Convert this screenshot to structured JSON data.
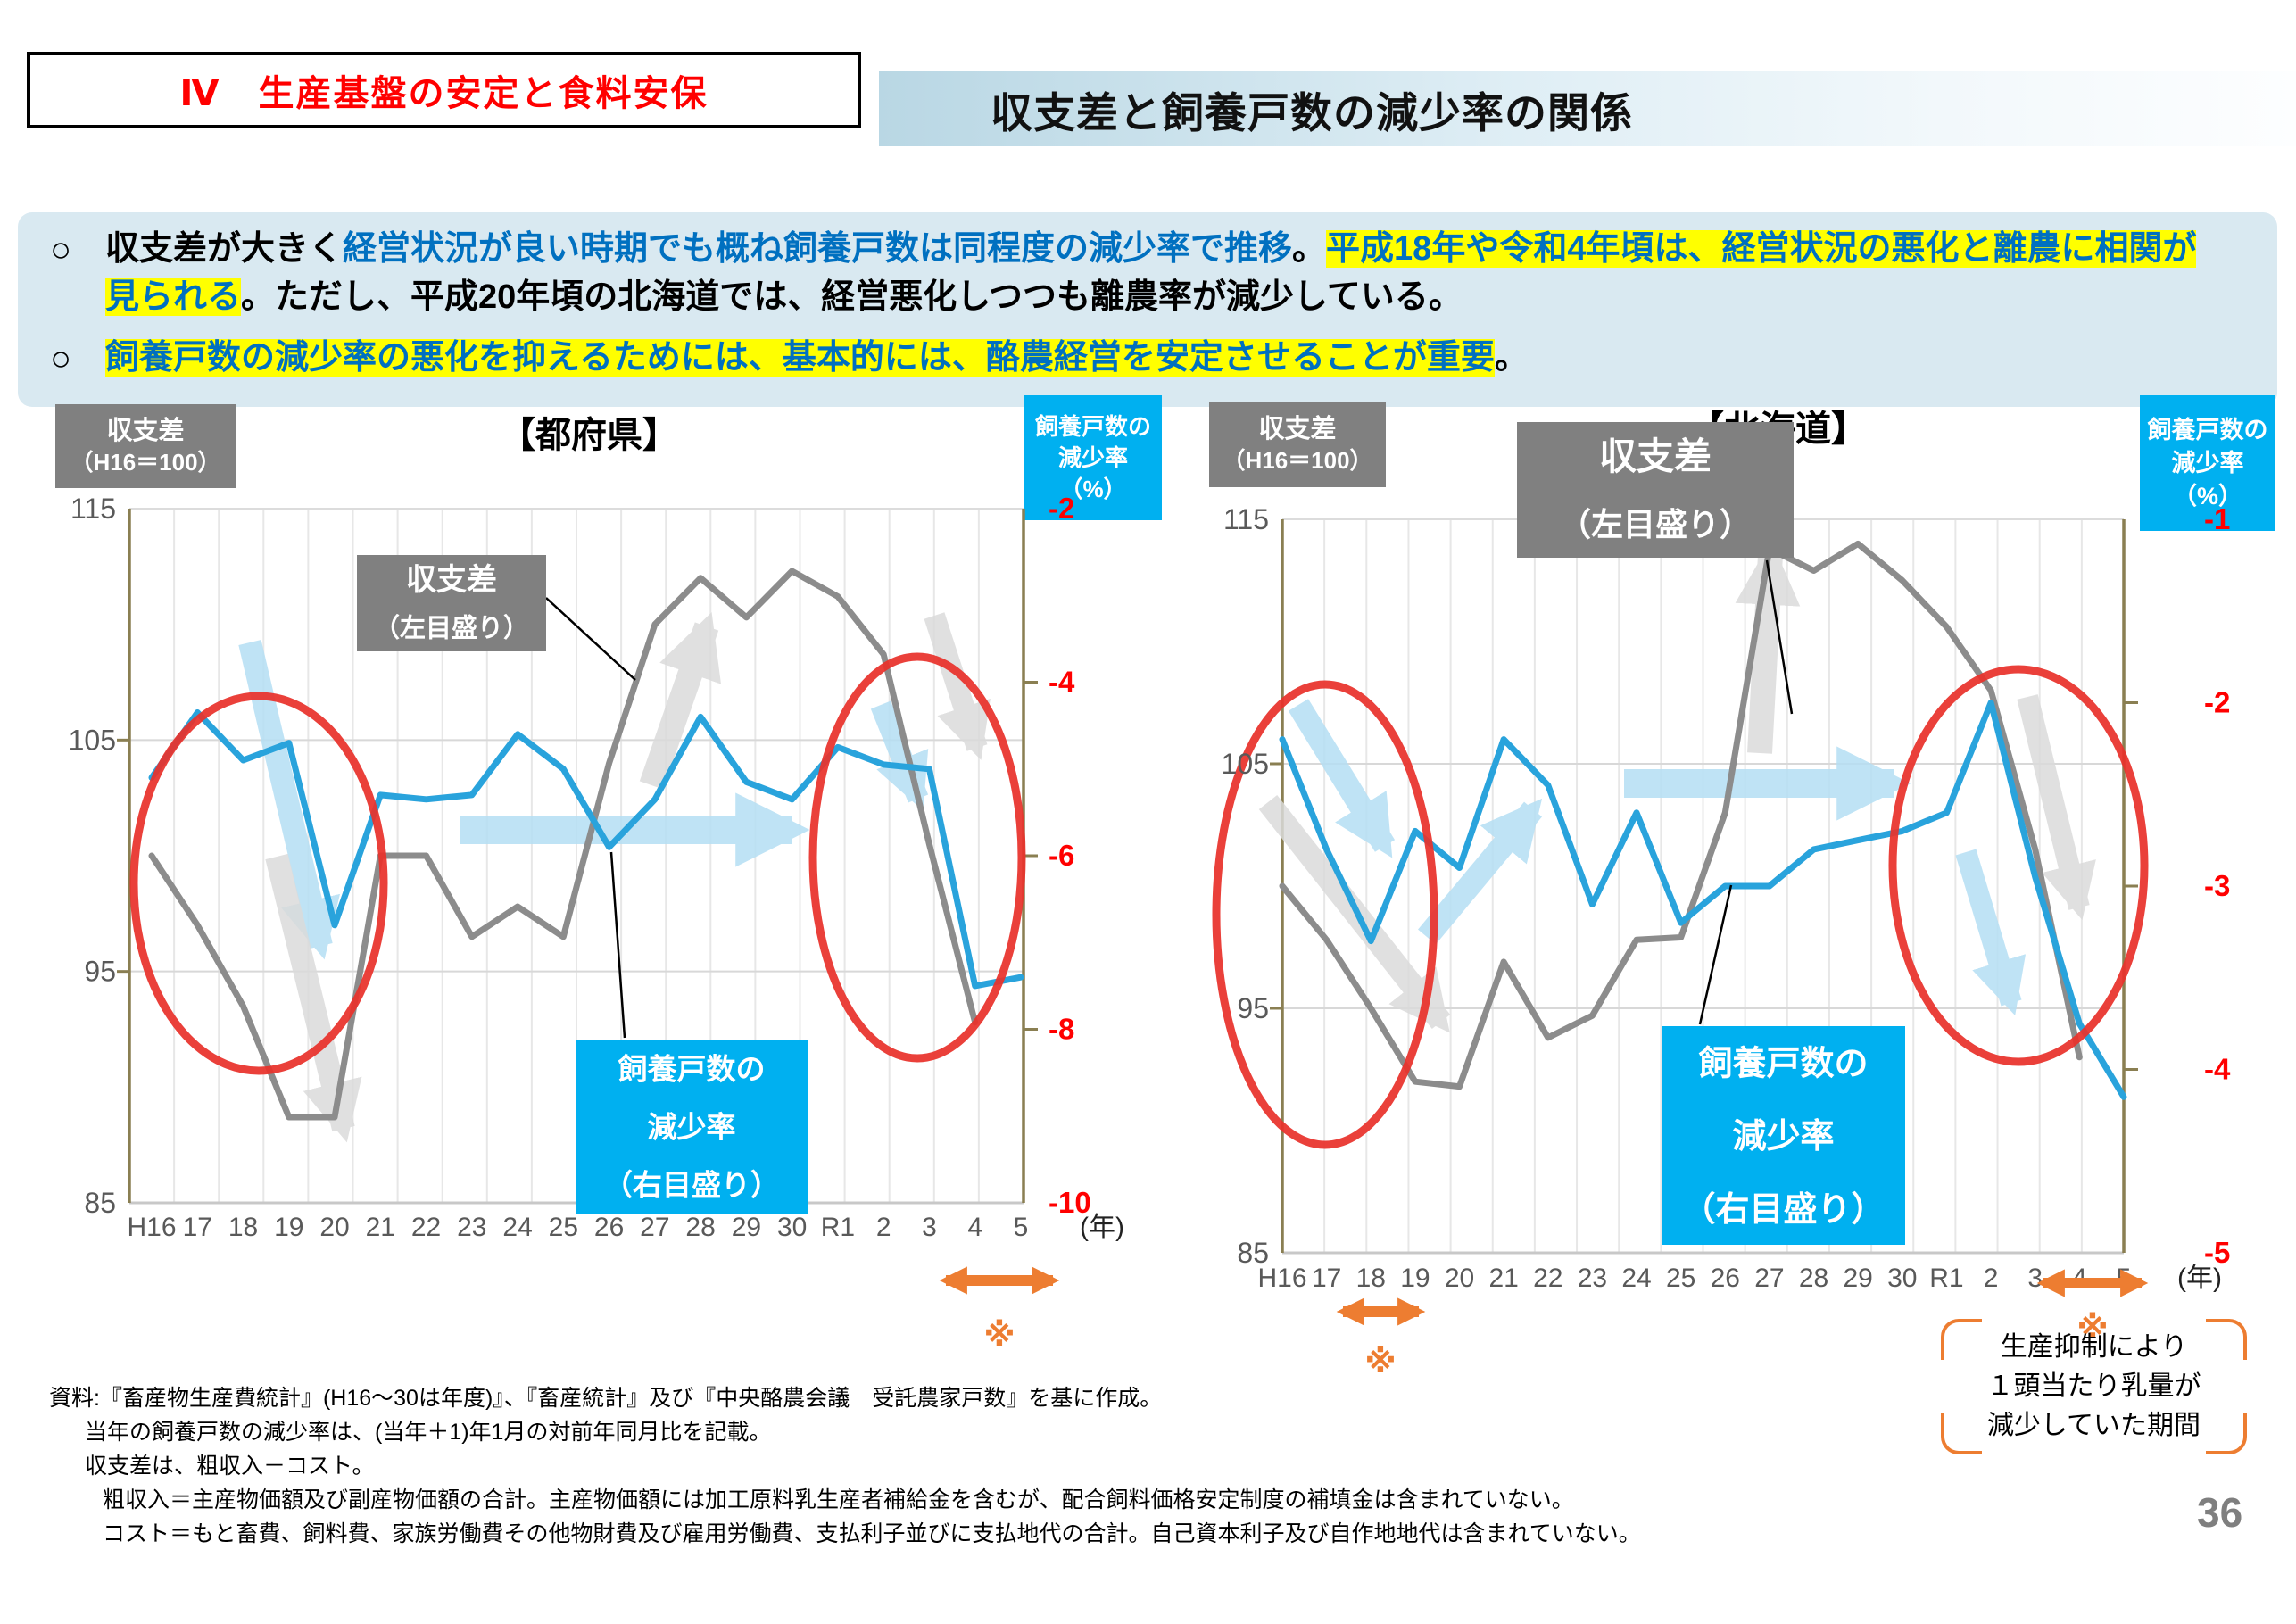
{
  "header": {
    "section_tag": "Ⅳ　生産基盤の安定と食料安保",
    "title": "収支差と飼養戸数の減少率の関係"
  },
  "lead": {
    "bullets": [
      {
        "marker": "○",
        "segments": [
          {
            "text": "収支差が大きく",
            "style": "plain"
          },
          {
            "text": "経営状況が良い時期でも概ね飼養戸数は同程度の減少率で推移",
            "style": "blue"
          },
          {
            "text": "。",
            "style": "plain"
          },
          {
            "text": "平成18年や令和4年頃は、経営状況の悪化と離農に相関が見られる",
            "style": "blue-highlight"
          },
          {
            "text": "。ただし、平成20年頃の北海道では、経営悪化しつつも離農率が減少している。",
            "style": "plain"
          }
        ]
      },
      {
        "marker": "○",
        "segments": [
          {
            "text": "飼養戸数の減少率の悪化を抑えるためには、基本的には、酪農経営を安定させることが重要",
            "style": "blue-highlight"
          },
          {
            "text": "。",
            "style": "plain"
          }
        ]
      }
    ]
  },
  "colors": {
    "emphasis_blue": "#0070C0",
    "highlight_yellow": "#FFFF00",
    "series_gray": "#8C8C8C",
    "series_blue": "#29A3DC",
    "light_blue_arrow": "#B5DFF4",
    "light_gray_arrow": "#DBDBDB",
    "annotation_red": "#E8312B",
    "accent_orange": "#ED7D31",
    "axis_red": "#FF0000",
    "axis_gray": "#595959",
    "box_gray": "#808080",
    "box_blue": "#00B0F0",
    "axis_olive": "#8A7F52",
    "lead_bg": "#D9E9F1"
  },
  "chart_data": [
    {
      "type": "line",
      "panel_title": "【都府県】",
      "left_axis_box": [
        "収支差",
        "（H16＝100）"
      ],
      "right_axis_box": [
        "飼養戸数の",
        "減少率",
        "（%）"
      ],
      "left_ticks": [
        115,
        105,
        95,
        85
      ],
      "right_ticks": [
        -2,
        -4,
        -6,
        -8,
        -10
      ],
      "left_range": [
        85,
        115
      ],
      "right_range": [
        -10,
        -2
      ],
      "x_labels": [
        "H16",
        "17",
        "18",
        "19",
        "20",
        "21",
        "22",
        "23",
        "24",
        "25",
        "26",
        "27",
        "28",
        "29",
        "30",
        "R1",
        "2",
        "3",
        "4",
        "5"
      ],
      "x_unit": "(年)",
      "footnote_mark": "※",
      "grid": true,
      "legend_position": "in-plot-callout-boxes",
      "series": [
        {
          "name": "収支差（左目盛り）",
          "axis": "left",
          "label_lines": [
            "収支差",
            "（左目盛り）"
          ],
          "values": [
            100,
            97,
            93.5,
            88.7,
            88.7,
            100,
            100,
            96.5,
            97.8,
            96.5,
            104,
            110,
            112,
            110.3,
            112.3,
            111.2,
            108.7,
            100.5,
            92.8,
            null
          ]
        },
        {
          "name": "飼養戸数の減少率（右目盛り）",
          "axis": "right",
          "label_lines": [
            "飼養戸数の",
            "減少率",
            "（右目盛り）"
          ],
          "values": [
            -5.1,
            -4.35,
            -4.9,
            -4.7,
            -6.8,
            -5.3,
            -5.35,
            -5.3,
            -4.6,
            -5.0,
            -5.9,
            -5.35,
            -4.4,
            -5.15,
            -5.35,
            -4.75,
            -4.95,
            -5.0,
            -7.5,
            -7.4
          ]
        }
      ]
    },
    {
      "type": "line",
      "panel_title": "【北海道】",
      "left_axis_box": [
        "収支差",
        "（H16＝100）"
      ],
      "right_axis_box": [
        "飼養戸数の",
        "減少率",
        "（%）"
      ],
      "left_ticks": [
        115,
        105,
        95,
        85
      ],
      "right_ticks": [
        -1,
        -2,
        -3,
        -4,
        -5
      ],
      "left_range": [
        85,
        115
      ],
      "right_range": [
        -5,
        -1
      ],
      "x_labels": [
        "H16",
        "17",
        "18",
        "19",
        "20",
        "21",
        "22",
        "23",
        "24",
        "25",
        "26",
        "27",
        "28",
        "29",
        "30",
        "R1",
        "2",
        "3",
        "4",
        "5"
      ],
      "x_unit": "(年)",
      "footnote_mark": "※",
      "grid": true,
      "legend_position": "in-plot-callout-boxes",
      "series": [
        {
          "name": "収支差（左目盛り）",
          "axis": "left",
          "label_lines": [
            "収支差",
            "（左目盛り）"
          ],
          "values": [
            100,
            97.8,
            95,
            92,
            91.8,
            96.9,
            93.8,
            94.7,
            97.8,
            97.9,
            103,
            113.8,
            112.9,
            114,
            112.5,
            110.6,
            108,
            101.5,
            93,
            null
          ]
        },
        {
          "name": "飼養戸数の減少率（右目盛り）",
          "axis": "right",
          "label_lines": [
            "飼養戸数の",
            "減少率",
            "（右目盛り）"
          ],
          "values": [
            -2.2,
            -2.8,
            -3.3,
            -2.7,
            -2.9,
            -2.2,
            -2.45,
            -3.1,
            -2.6,
            -3.2,
            -3.0,
            -3.0,
            -2.8,
            -2.75,
            -2.7,
            -2.6,
            -2.0,
            -2.95,
            -3.75,
            -4.15
          ]
        }
      ]
    }
  ],
  "callout": {
    "lines": [
      "生産抑制により",
      "１頭当たり乳量が",
      "減少していた期間"
    ]
  },
  "notes": [
    "資料:『畜産物生産費統計』(H16～30は年度)』、『畜産統計』及び『中央酪農会議　受託農家戸数』を基に作成。",
    "当年の飼養戸数の減少率は、(当年＋1)年1月の対前年同月比を記載。",
    "収支差は、粗収入－コスト。",
    "粗収入＝主産物価額及び副産物価額の合計。主産物価額には加工原料乳生産者補給金を含むが、配合飼料価格安定制度の補填金は含まれていない。",
    "コスト＝もと畜費、飼料費、家族労働費その他物財費及び雇用労働費、支払利子並びに支払地代の合計。自己資本利子及び自作地地代は含まれていない。"
  ],
  "page_number": "36"
}
